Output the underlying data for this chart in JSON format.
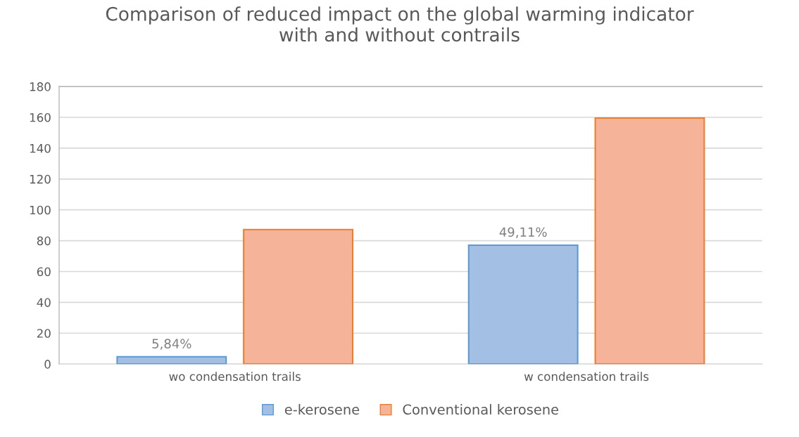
{
  "chart_data": {
    "type": "bar",
    "title": "Comparison of reduced impact on the global warming indicator\nwith and without contrails",
    "categories": [
      "wo condensation trails",
      "w condensation trails"
    ],
    "series": [
      {
        "name": "e-kerosene",
        "color": "#a3c0e4",
        "values": [
          4.7,
          77.1
        ]
      },
      {
        "name": "Conventional kerosene",
        "color": "#f5b49a",
        "values": [
          87.2,
          159.6
        ]
      }
    ],
    "ylim": [
      0,
      180
    ],
    "yticks": [
      0,
      20,
      40,
      60,
      80,
      100,
      120,
      140,
      160,
      180
    ],
    "grid": "y",
    "legend": "bottom",
    "annotations": [
      "5,84%",
      "49,11%"
    ]
  }
}
